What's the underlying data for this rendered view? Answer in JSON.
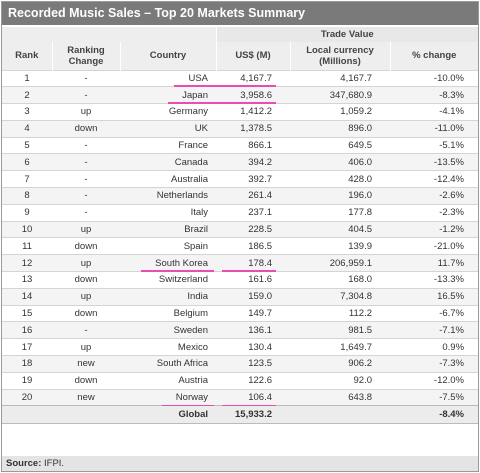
{
  "title": "Recorded Music Sales – Top 20 Markets Summary",
  "headers": {
    "trade_value": "Trade Value",
    "rank": "Rank",
    "ranking_change_1": "Ranking",
    "ranking_change_2": "Change",
    "country": "Country",
    "usd": "US$ (M)",
    "local_1": "Local currency",
    "local_2": "(Millions)",
    "pct": "% change"
  },
  "rows": [
    {
      "rank": "1",
      "change": "-",
      "country": "USA",
      "usd": "4,167.7",
      "local": "4,167.7",
      "pct": "-10.0%",
      "highlight": true
    },
    {
      "rank": "2",
      "change": "-",
      "country": "Japan",
      "usd": "3,958.6",
      "local": "347,680.9",
      "pct": "-8.3%",
      "highlight": true
    },
    {
      "rank": "3",
      "change": "up",
      "country": "Germany",
      "usd": "1,412.2",
      "local": "1,059.2",
      "pct": "-4.1%"
    },
    {
      "rank": "4",
      "change": "down",
      "country": "UK",
      "usd": "1,378.5",
      "local": "896.0",
      "pct": "-11.0%"
    },
    {
      "rank": "5",
      "change": "-",
      "country": "France",
      "usd": "866.1",
      "local": "649.5",
      "pct": "-5.1%"
    },
    {
      "rank": "6",
      "change": "-",
      "country": "Canada",
      "usd": "394.2",
      "local": "406.0",
      "pct": "-13.5%"
    },
    {
      "rank": "7",
      "change": "-",
      "country": "Australia",
      "usd": "392.7",
      "local": "428.0",
      "pct": "-12.4%"
    },
    {
      "rank": "8",
      "change": "-",
      "country": "Netherlands",
      "usd": "261.4",
      "local": "196.0",
      "pct": "-2.6%"
    },
    {
      "rank": "9",
      "change": "-",
      "country": "Italy",
      "usd": "237.1",
      "local": "177.8",
      "pct": "-2.3%"
    },
    {
      "rank": "10",
      "change": "up",
      "country": "Brazil",
      "usd": "228.5",
      "local": "404.5",
      "pct": "-1.2%"
    },
    {
      "rank": "11",
      "change": "down",
      "country": "Spain",
      "usd": "186.5",
      "local": "139.9",
      "pct": "-21.0%"
    },
    {
      "rank": "12",
      "change": "up",
      "country": "South Korea",
      "usd": "178.4",
      "local": "206,959.1",
      "pct": "11.7%",
      "highlight": true
    },
    {
      "rank": "13",
      "change": "down",
      "country": "Switzerland",
      "usd": "161.6",
      "local": "168.0",
      "pct": "-13.3%"
    },
    {
      "rank": "14",
      "change": "up",
      "country": "India",
      "usd": "159.0",
      "local": "7,304.8",
      "pct": "16.5%"
    },
    {
      "rank": "15",
      "change": "down",
      "country": "Belgium",
      "usd": "149.7",
      "local": "112.2",
      "pct": "-6.7%"
    },
    {
      "rank": "16",
      "change": "-",
      "country": "Sweden",
      "usd": "136.1",
      "local": "981.5",
      "pct": "-7.1%"
    },
    {
      "rank": "17",
      "change": "up",
      "country": "Mexico",
      "usd": "130.4",
      "local": "1,649.7",
      "pct": "0.9%"
    },
    {
      "rank": "18",
      "change": "new",
      "country": "South Africa",
      "usd": "123.5",
      "local": "906.2",
      "pct": "-7.3%"
    },
    {
      "rank": "19",
      "change": "down",
      "country": "Austria",
      "usd": "122.6",
      "local": "92.0",
      "pct": "-12.0%"
    },
    {
      "rank": "20",
      "change": "new",
      "country": "Norway",
      "usd": "106.4",
      "local": "643.8",
      "pct": "-7.5%",
      "highlight": true
    }
  ],
  "total": {
    "label": "Global",
    "usd": "15,933.2",
    "pct": "-8.4%"
  },
  "source": {
    "label": "Source:",
    "value": "IFPI."
  },
  "colors": {
    "title_bg": "#7a7a7a",
    "highlight_underline": "#e64fb0",
    "source_bg": "#e4e4e4"
  }
}
